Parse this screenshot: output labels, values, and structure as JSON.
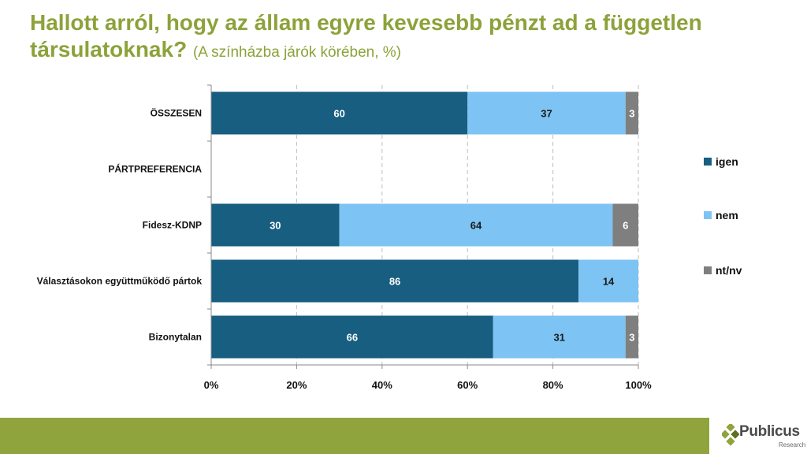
{
  "title": {
    "main": "Hallott arról, hogy az állam egyre kevesebb pénzt ad a független társulatoknak?",
    "subtitle": "(A színházba járók körében, %)"
  },
  "chart_data": {
    "type": "bar",
    "orientation": "horizontal",
    "stacked": true,
    "categories": [
      "ÖSSZESEN",
      "PÁRTPREFERENCIA",
      "Fidesz-KDNP",
      "Választásokon együttműködő pártok",
      "Bizonytalan"
    ],
    "series": [
      {
        "name": "igen",
        "color": "#175e80",
        "values": [
          60,
          null,
          30,
          86,
          66
        ]
      },
      {
        "name": "nem",
        "color": "#7dc3f3",
        "values": [
          37,
          null,
          64,
          14,
          31
        ]
      },
      {
        "name": "nt/nv",
        "color": "#7f7f7f",
        "values": [
          3,
          null,
          6,
          null,
          3
        ]
      }
    ],
    "xlim": [
      0,
      100
    ],
    "xticks": [
      "0%",
      "20%",
      "40%",
      "60%",
      "80%",
      "100%"
    ],
    "grid": "vertical-dashed",
    "legend": "right"
  },
  "logo": {
    "name": "Publicus",
    "sub": "Research"
  }
}
